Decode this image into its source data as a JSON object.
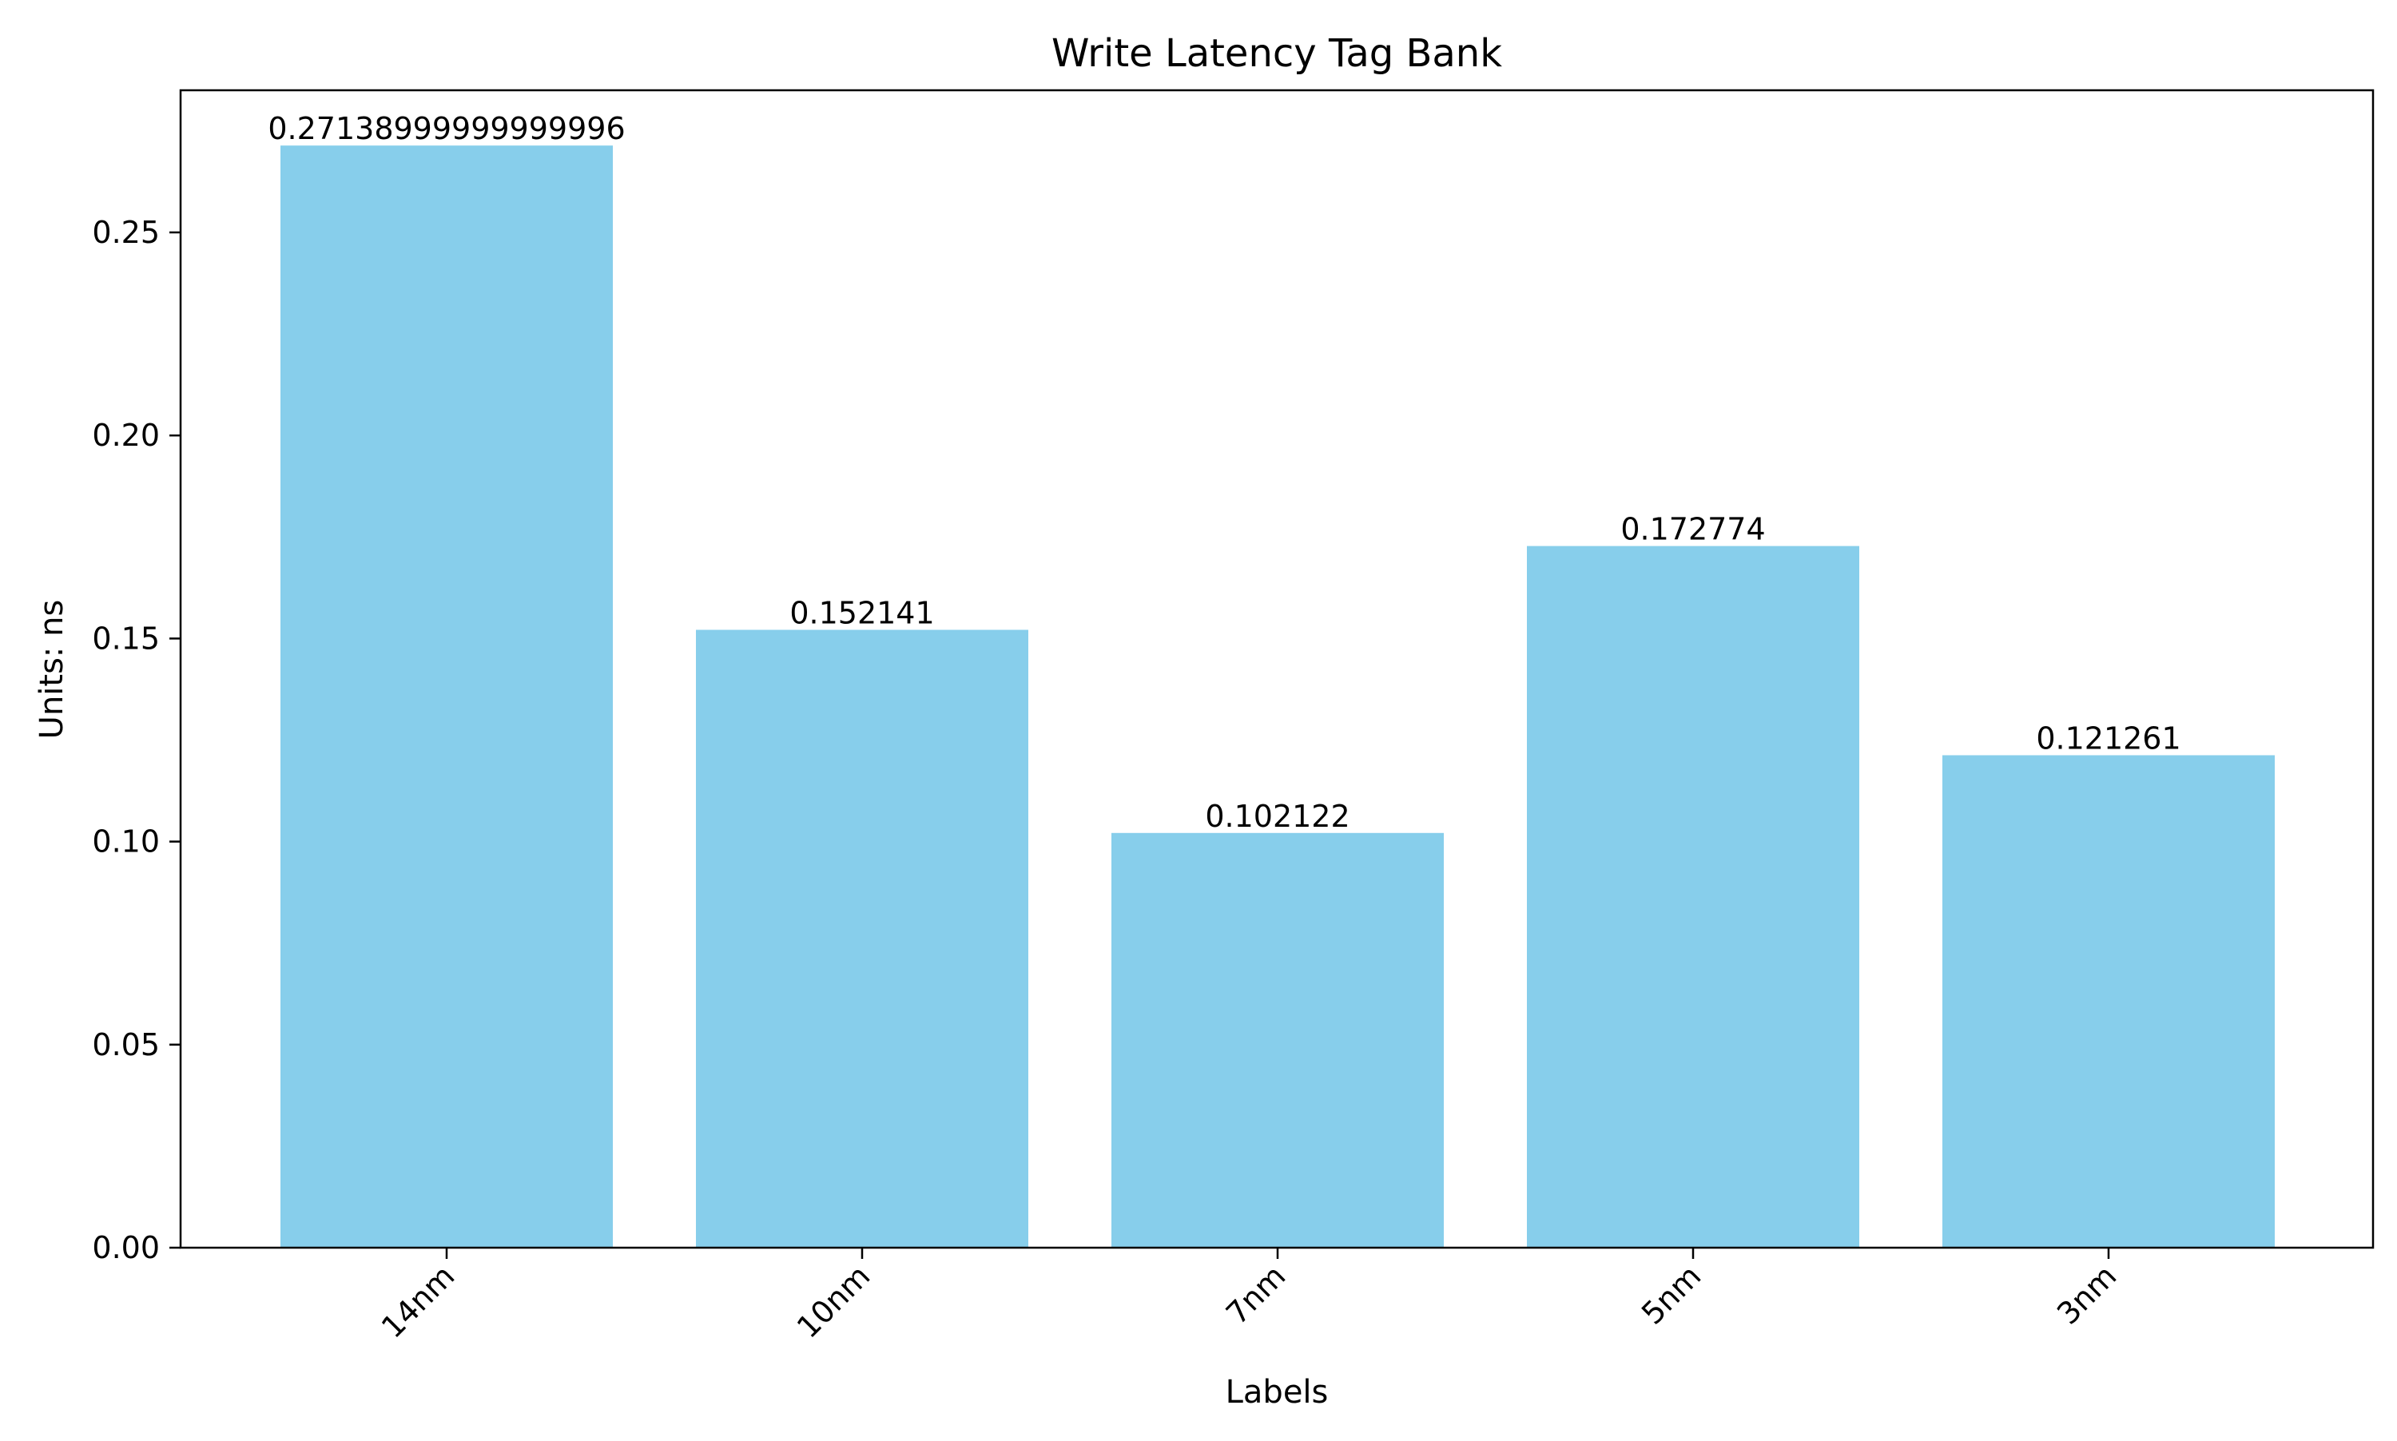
{
  "chart_data": {
    "type": "bar",
    "title": "Write Latency Tag Bank",
    "xlabel": "Labels",
    "ylabel": "Units: ns",
    "categories": [
      "14nm",
      "10nm",
      "7nm",
      "5nm",
      "3nm"
    ],
    "values": [
      0.27138999999999996,
      0.152141,
      0.102122,
      0.172774,
      0.121261
    ],
    "data_labels": [
      "0.27138999999999996",
      "0.152141",
      "0.102122",
      "0.172774",
      "0.121261"
    ],
    "yticks": [
      0.0,
      0.05,
      0.1,
      0.15,
      0.2,
      0.25
    ],
    "ytick_labels": [
      "0.00",
      "0.05",
      "0.10",
      "0.15",
      "0.20",
      "0.25"
    ],
    "ylim": [
      0,
      0.285
    ],
    "bar_color": "#87ceeb",
    "grid": false,
    "legend": "none",
    "xtick_rotation": 45
  }
}
